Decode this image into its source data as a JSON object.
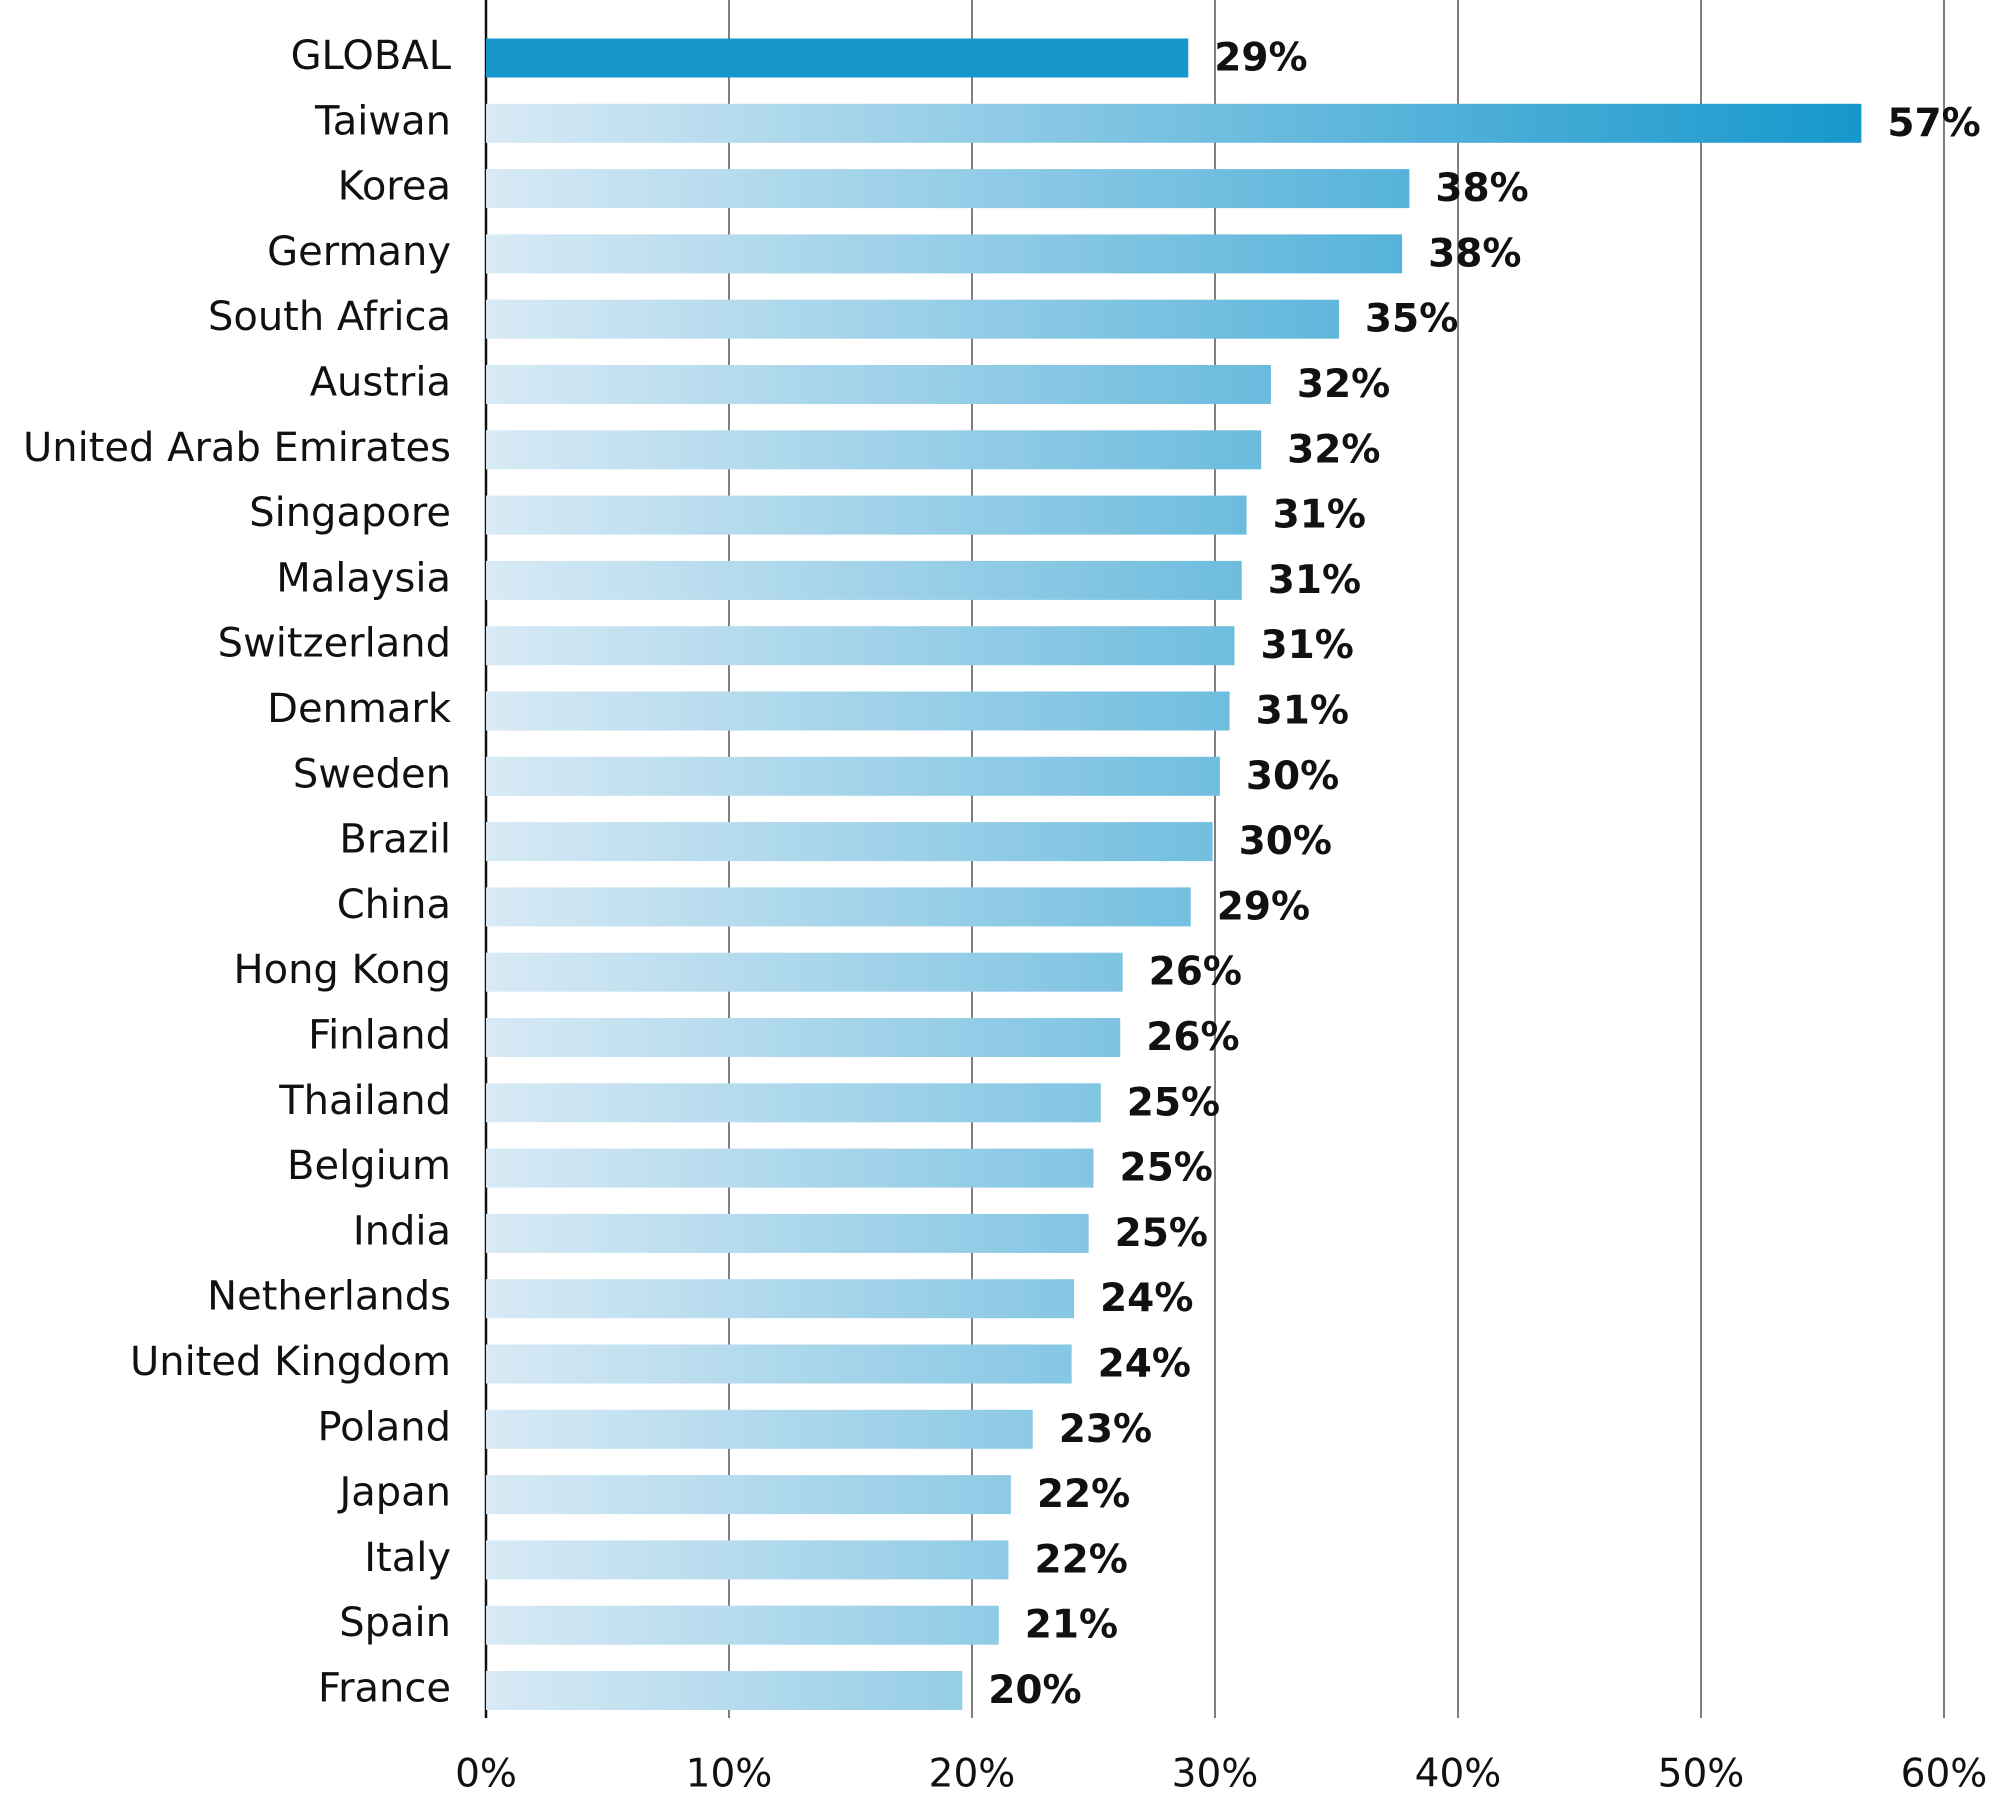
{
  "chart_data": {
    "type": "bar",
    "orientation": "horizontal",
    "categories": [
      "GLOBAL",
      "Taiwan",
      "Korea",
      "Germany",
      "South Africa",
      "Austria",
      "United Arab Emirates",
      "Singapore",
      "Malaysia",
      "Switzerland",
      "Denmark",
      "Sweden",
      "Brazil",
      "China",
      "Hong Kong",
      "Finland",
      "Thailand",
      "Belgium",
      "India",
      "Netherlands",
      "United Kingdom",
      "Poland",
      "Japan",
      "Italy",
      "Spain",
      "France"
    ],
    "values": [
      28.9,
      56.6,
      38.0,
      37.7,
      35.1,
      32.3,
      31.9,
      31.3,
      31.1,
      30.8,
      30.6,
      30.2,
      29.9,
      29.0,
      26.2,
      26.1,
      25.3,
      25.0,
      24.8,
      24.2,
      24.1,
      22.5,
      21.6,
      21.5,
      21.1,
      19.6
    ],
    "value_labels": [
      "29%",
      "57%",
      "38%",
      "38%",
      "35%",
      "32%",
      "32%",
      "31%",
      "31%",
      "31%",
      "31%",
      "30%",
      "30%",
      "29%",
      "26%",
      "26%",
      "25%",
      "25%",
      "25%",
      "24%",
      "24%",
      "23%",
      "22%",
      "22%",
      "21%",
      "20%"
    ],
    "highlight_color": "#1597cc",
    "gradient_from": "#d8eaf5",
    "color": "#1597cc",
    "xlim": [
      0,
      60
    ],
    "xticks": [
      {
        "value": 0,
        "label": "0%"
      },
      {
        "value": 10,
        "label": "10%"
      },
      {
        "value": 20,
        "label": "20%"
      },
      {
        "value": 30,
        "label": "30%"
      },
      {
        "value": 40,
        "label": "40%"
      },
      {
        "value": 50,
        "label": "50%"
      },
      {
        "value": 60,
        "label": "60%"
      }
    ],
    "grid": true
  }
}
